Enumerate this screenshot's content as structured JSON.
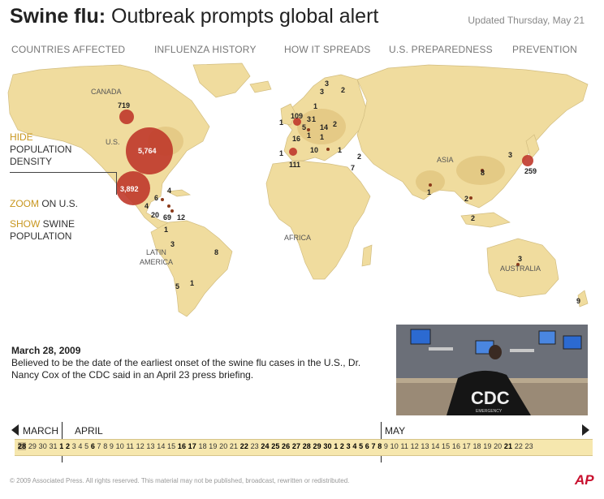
{
  "header": {
    "title_bold": "Swine flu:",
    "title_rest": " Outbreak prompts global alert",
    "updated": "Updated Thursday, May 21"
  },
  "tabs": [
    "COUNTRIES AFFECTED",
    "INFLUENZA HISTORY",
    "HOW IT SPREADS",
    "U.S. PREPAREDNESS",
    "PREVENTION"
  ],
  "controls": {
    "hide": "HIDE",
    "population_density_1": "POPULATION",
    "population_density_2": "DENSITY",
    "zoom": "ZOOM",
    "zoom_rest": " ON U.S.",
    "show": "SHOW",
    "show_rest": " SWINE",
    "population": "POPULATION"
  },
  "region_labels": {
    "canada": "CANADA",
    "us": "U.S.",
    "latin_1": "LATIN",
    "latin_2": "AMERICA",
    "africa": "AFRICA",
    "asia": "ASIA",
    "australia": "AUSTRALIA"
  },
  "case_labels": [
    {
      "id": "canada",
      "v": "719"
    },
    {
      "id": "us",
      "v": "5,764"
    },
    {
      "id": "mexico",
      "v": "3,892"
    },
    {
      "id": "cuba",
      "v": "4"
    },
    {
      "id": "gt",
      "v": "6"
    },
    {
      "id": "hn",
      "v": "4"
    },
    {
      "id": "cr",
      "v": "20"
    },
    {
      "id": "pa",
      "v": "69"
    },
    {
      "id": "co",
      "v": "12"
    },
    {
      "id": "ec",
      "v": "1"
    },
    {
      "id": "pe",
      "v": "3"
    },
    {
      "id": "br",
      "v": "8"
    },
    {
      "id": "cl",
      "v": "5"
    },
    {
      "id": "ar",
      "v": "1"
    },
    {
      "id": "ie",
      "v": "1"
    },
    {
      "id": "uk",
      "v": "109"
    },
    {
      "id": "no",
      "v": "3"
    },
    {
      "id": "se",
      "v": "3"
    },
    {
      "id": "fi",
      "v": "2"
    },
    {
      "id": "dk",
      "v": "1"
    },
    {
      "id": "nl",
      "v": "3"
    },
    {
      "id": "de",
      "v": "5"
    },
    {
      "id": "pl",
      "v": "14"
    },
    {
      "id": "be",
      "v": "1"
    },
    {
      "id": "fr",
      "v": "16"
    },
    {
      "id": "ch",
      "v": "1"
    },
    {
      "id": "at",
      "v": "1"
    },
    {
      "id": "pl2",
      "v": "2"
    },
    {
      "id": "it",
      "v": "10"
    },
    {
      "id": "gr",
      "v": "1"
    },
    {
      "id": "pt",
      "v": "1"
    },
    {
      "id": "es",
      "v": "111"
    },
    {
      "id": "tr",
      "v": "2"
    },
    {
      "id": "il",
      "v": "7"
    },
    {
      "id": "in",
      "v": "1"
    },
    {
      "id": "cn",
      "v": "8"
    },
    {
      "id": "kr",
      "v": "3"
    },
    {
      "id": "jp",
      "v": "259"
    },
    {
      "id": "th",
      "v": "2"
    },
    {
      "id": "my",
      "v": "2"
    },
    {
      "id": "au",
      "v": "3"
    },
    {
      "id": "nz",
      "v": "9"
    }
  ],
  "event": {
    "date": "March 28, 2009",
    "text": "Believed to be the date of the earliest onset of the swine flu cases in the U.S., Dr. Nancy Cox of the CDC said in an April 23 press briefing."
  },
  "photo": {
    "badge": "CDC",
    "sub": "EMERGENCY"
  },
  "timeline": {
    "months": [
      "MARCH",
      "APRIL",
      "MAY"
    ],
    "days_html": "<b style=\"background:#c9b98b\">28</b> 29 30 31 <b>1</b> <b>2</b> 3 4 5 <b>6</b> 7 8 9 10 11 12 13 14 15 <b>16</b> <b>17</b> 18 19 20 21 <b>22</b> 23 <b>24</b> <b>25</b> <b>26</b> <b>27</b> <b>28</b> <b>29</b> <b>30</b> <b>1</b> <b>2</b> <b>3</b> <b>4</b> <b>5</b> <b>6</b> <b>7</b> <b>8</b> 9 10 11 12 13 14 15 16 17 18 19 20 <b>21</b> 22 23"
  },
  "footer": {
    "copyright": "©  2009 Associated Press. All rights reserved. This material may not be published, broadcast, rewritten or redistributed.",
    "logo": "AP"
  },
  "colors": {
    "land": "#f0dc9e",
    "land_dark": "#e6cc85",
    "ocean": "#ffffff",
    "bubble": "#c0392b",
    "accent": "#c8961e"
  }
}
